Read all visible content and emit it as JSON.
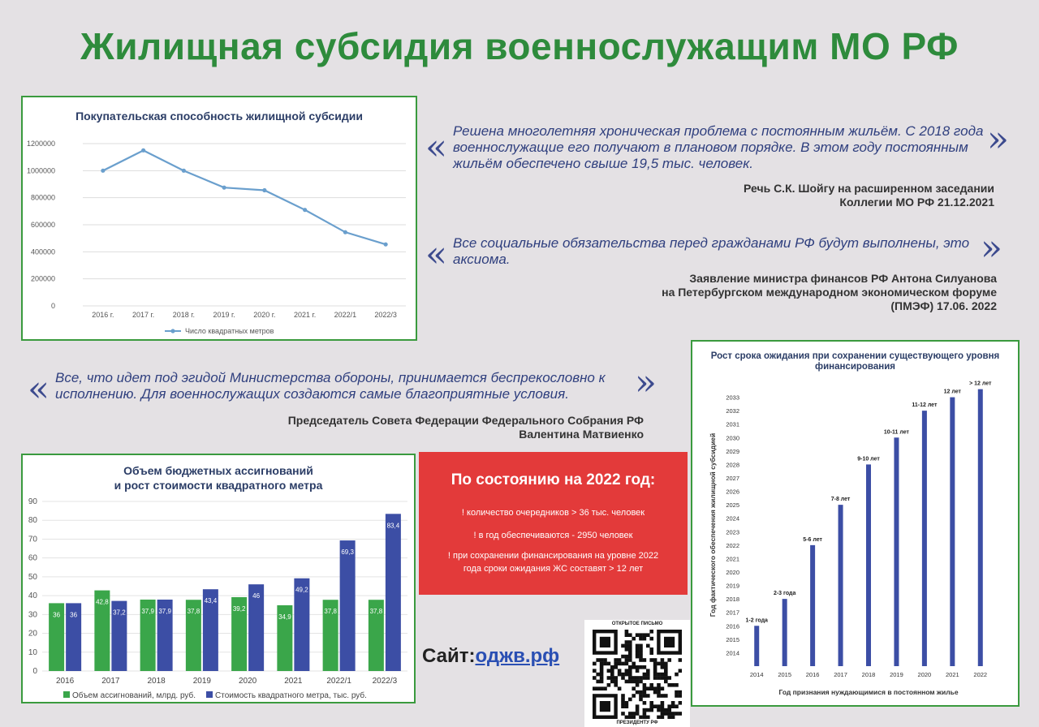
{
  "title": "Жилищная субсидия военнослужащим МО РФ",
  "colors": {
    "accent_green": "#2e8b3c",
    "line": "#6a9fcd",
    "bar_green": "#3aa64a",
    "bar_blue": "#3c4ea5",
    "alert_red": "#e33a3a"
  },
  "quotes": [
    {
      "text": "Решена многолетняя хроническая проблема с постоянным жильём. С 2018 года военнослужащие его получают в плановом порядке. В этом году постоянным жильём обеспечено свыше 19,5 тыс. человек.",
      "attribution": [
        "Речь С.К. Шойгу на расширенном заседании",
        "Коллегии МО РФ 21.12.2021"
      ]
    },
    {
      "text": "Все социальные обязательства перед гражданами РФ будут выполнены, это аксиома.",
      "attribution": [
        "Заявление министра  финансов РФ Антона Силуанова",
        "на Петербургском международном экономическом форуме",
        "(ПМЭФ) 17.06. 2022"
      ]
    },
    {
      "text": "Все, что идет под эгидой Министерства обороны, принимается беспрекословно к исполнению. Для военнослужащих создаются самые благоприятные условия.",
      "attribution": [
        "Председатель Совета Федерации Федерального Собрания РФ",
        "Валентина Матвиенко"
      ]
    }
  ],
  "quote_open": "«",
  "quote_close": "»",
  "status_box": {
    "title": "По состоянию на 2022 год:",
    "items": [
      "! количество очередников > 36 тыс. человек",
      "! в год обеспечиваются - 2950 человек",
      "! при сохранении финансирования на уровне 2022 года сроки ожидания ЖС составят > 12 лет"
    ]
  },
  "site": {
    "label": "Сайт:",
    "link": "оджв.рф"
  },
  "qr": {
    "top": "ОТКРЫТОЕ ПИСЬМО",
    "bottom": "ПРЕЗИДЕНТУ РФ"
  },
  "chart_data": [
    {
      "type": "line",
      "title": "Покупательская способность жилищной субсидии",
      "categories": [
        "2016 г.",
        "2017 г.",
        "2018 г.",
        "2019 г.",
        "2020 г.",
        "2021 г.",
        "2022/1",
        "2022/3"
      ],
      "series": [
        {
          "name": "Число квадратных метров",
          "values": [
            1000000,
            1150000,
            1000000,
            875000,
            855000,
            710000,
            545000,
            455000
          ]
        }
      ],
      "ylim": [
        0,
        1200000
      ],
      "yticks": [
        "0",
        "200000",
        "400000",
        "600000",
        "800000",
        "1000000",
        "1200000"
      ],
      "grid": true,
      "legend": "bottom"
    },
    {
      "type": "bar",
      "title": [
        "Объем бюджетных ассигнований",
        "и рост стоимости квадратного метра"
      ],
      "categories": [
        "2016",
        "2017",
        "2018",
        "2019",
        "2020",
        "2021",
        "2022/1",
        "2022/3"
      ],
      "series": [
        {
          "name": "Объем ассигнований, млрд. руб.",
          "values": [
            36,
            42.8,
            37.9,
            37.8,
            39.2,
            34.9,
            37.8,
            37.8
          ],
          "labels": [
            "36",
            "42,8",
            "37,9",
            "37,8",
            "39,2",
            "34,9",
            "37,8",
            "37,8"
          ]
        },
        {
          "name": "Стоимость квадратного метра, тыс. руб.",
          "values": [
            36,
            37.2,
            37.9,
            43.4,
            46,
            49.2,
            69.3,
            83.4
          ],
          "labels": [
            "36",
            "37,2",
            "37,9",
            "43,4",
            "46",
            "49,2",
            "69,3",
            "83,4"
          ]
        }
      ],
      "ylim": [
        0,
        90
      ],
      "yticks": [
        "0",
        "10",
        "20",
        "30",
        "40",
        "50",
        "60",
        "70",
        "80",
        "90"
      ],
      "grid": true,
      "legend": "bottom"
    },
    {
      "type": "bar",
      "title": [
        "Рост срока ожидания при сохранении существующего уровня",
        "финансирования"
      ],
      "xlabel": "Год признания нуждающимися в постоянном жилье",
      "ylabel": "Год фактического обеспечения жилищной субсидией",
      "categories": [
        "2014",
        "2015",
        "2016",
        "2017",
        "2018",
        "2019",
        "2020",
        "2021",
        "2022"
      ],
      "values": [
        2016,
        2018,
        2022,
        2025,
        2028,
        2030,
        2032,
        2033,
        2033.6
      ],
      "labels": [
        "1-2 года",
        "2-3 года",
        "5-6 лет",
        "7-8 лет",
        "9-10 лет",
        "10-11 лет",
        "11-12 лет",
        "12 лет",
        "> 12 лет"
      ],
      "ylim": [
        2013,
        2034
      ],
      "yticks": [
        "2014",
        "2015",
        "2016",
        "2017",
        "2018",
        "2019",
        "2020",
        "2021",
        "2022",
        "2023",
        "2024",
        "2025",
        "2026",
        "2027",
        "2028",
        "2029",
        "2030",
        "2031",
        "2032",
        "2033"
      ]
    }
  ]
}
